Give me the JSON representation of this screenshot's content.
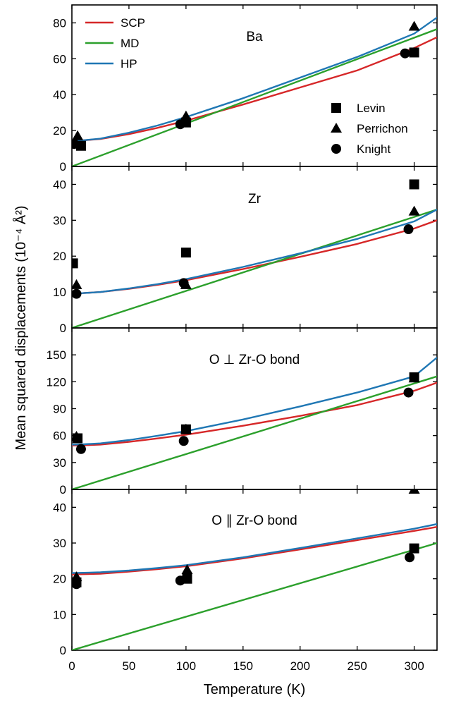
{
  "figure": {
    "ylabel": "Mean squared displacements (10⁻⁴ Å²)",
    "xlabel": "Temperature (K)",
    "xticks": [
      "0",
      "50",
      "100",
      "150",
      "200",
      "250",
      "300"
    ]
  },
  "colors": {
    "SCP": "#d62728",
    "MD": "#2ca02c",
    "HP": "#1f77b4",
    "exp": "#000000"
  },
  "legend_lines": [
    {
      "key": "SCP",
      "label": "SCP"
    },
    {
      "key": "MD",
      "label": "MD"
    },
    {
      "key": "HP",
      "label": "HP"
    }
  ],
  "legend_markers": [
    {
      "marker": "square",
      "label": "Levin"
    },
    {
      "marker": "triangle",
      "label": "Perrichon"
    },
    {
      "marker": "circle",
      "label": "Knight"
    }
  ],
  "chart_data": [
    {
      "type": "line",
      "title": "Ba",
      "xlabel": "Temperature (K)",
      "xlim": [
        0,
        320
      ],
      "ylim": [
        0,
        90
      ],
      "yticks": [
        0,
        20,
        40,
        60,
        80
      ],
      "series": [
        {
          "name": "SCP",
          "x": [
            0,
            10,
            25,
            50,
            75,
            100,
            150,
            200,
            250,
            300,
            320
          ],
          "y": [
            14.5,
            14.6,
            15.3,
            18.0,
            21.5,
            25.5,
            34.5,
            44.0,
            53.5,
            66.0,
            72.0
          ]
        },
        {
          "name": "MD",
          "x": [
            0,
            320
          ],
          "y": [
            0,
            76.5
          ]
        },
        {
          "name": "HP",
          "x": [
            0,
            10,
            25,
            50,
            75,
            100,
            150,
            200,
            250,
            300,
            320
          ],
          "y": [
            14.5,
            14.6,
            15.5,
            18.8,
            22.8,
            27.5,
            38.0,
            49.5,
            61.0,
            74.0,
            83.0
          ]
        }
      ],
      "experiments": [
        {
          "name": "Levin",
          "marker": "square",
          "points": [
            [
              8,
              11.5
            ],
            [
              100,
              24.5
            ],
            [
              300,
              63.5
            ]
          ]
        },
        {
          "name": "Perrichon",
          "marker": "triangle",
          "points": [
            [
              5,
              17
            ],
            [
              100,
              28
            ],
            [
              300,
              78
            ]
          ]
        },
        {
          "name": "Knight",
          "marker": "circle",
          "points": [
            [
              2,
              12.5
            ],
            [
              95,
              23.5
            ],
            [
              292,
              63
            ]
          ]
        }
      ]
    },
    {
      "type": "line",
      "title": "Zr",
      "xlabel": "Temperature (K)",
      "xlim": [
        0,
        320
      ],
      "ylim": [
        0,
        45
      ],
      "yticks": [
        0,
        10,
        20,
        30,
        40
      ],
      "series": [
        {
          "name": "SCP",
          "x": [
            0,
            10,
            25,
            50,
            75,
            100,
            150,
            200,
            250,
            300,
            320
          ],
          "y": [
            9.6,
            9.7,
            10.0,
            10.9,
            12.0,
            13.3,
            16.4,
            19.8,
            23.4,
            27.7,
            30.0
          ]
        },
        {
          "name": "MD",
          "x": [
            0,
            320
          ],
          "y": [
            0,
            33
          ]
        },
        {
          "name": "HP",
          "x": [
            0,
            10,
            25,
            50,
            75,
            100,
            150,
            200,
            250,
            300,
            320
          ],
          "y": [
            9.6,
            9.7,
            10.0,
            11.0,
            12.2,
            13.6,
            17.0,
            20.8,
            24.8,
            29.7,
            33.0
          ]
        }
      ],
      "experiments": [
        {
          "name": "Levin",
          "marker": "square",
          "points": [
            [
              1,
              18
            ],
            [
              100,
              21
            ],
            [
              300,
              40
            ]
          ]
        },
        {
          "name": "Perrichon",
          "marker": "triangle",
          "points": [
            [
              4,
              12
            ],
            [
              100,
              12
            ],
            [
              300,
              32.5
            ]
          ]
        },
        {
          "name": "Knight",
          "marker": "circle",
          "points": [
            [
              4,
              9.5
            ],
            [
              98,
              12.5
            ],
            [
              295,
              27.5
            ]
          ]
        }
      ]
    },
    {
      "type": "line",
      "title": "O ⊥ Zr-O bond",
      "xlabel": "Temperature (K)",
      "xlim": [
        0,
        320
      ],
      "ylim": [
        0,
        180
      ],
      "yticks": [
        0,
        30,
        60,
        90,
        120,
        150
      ],
      "series": [
        {
          "name": "SCP",
          "x": [
            0,
            10,
            25,
            50,
            75,
            100,
            150,
            200,
            250,
            300,
            320
          ],
          "y": [
            49.0,
            49.2,
            50.0,
            53.0,
            56.8,
            61.0,
            71.0,
            82.0,
            94.0,
            110.0,
            119.0
          ]
        },
        {
          "name": "MD",
          "x": [
            0,
            320
          ],
          "y": [
            0,
            126
          ]
        },
        {
          "name": "HP",
          "x": [
            0,
            10,
            25,
            50,
            75,
            100,
            150,
            200,
            250,
            300,
            320
          ],
          "y": [
            50.0,
            50.3,
            51.3,
            55.0,
            59.8,
            65.0,
            78.0,
            92.5,
            108.0,
            126.0,
            147.0
          ]
        }
      ],
      "experiments": [
        {
          "name": "Levin",
          "marker": "square",
          "points": [
            [
              5,
              57
            ],
            [
              100,
              67
            ],
            [
              300,
              125
            ]
          ]
        },
        {
          "name": "Perrichon",
          "marker": "triangle",
          "points": [
            [
              4,
              59
            ],
            [
              100,
              67
            ],
            [
              300,
              124
            ]
          ]
        },
        {
          "name": "Knight",
          "marker": "circle",
          "points": [
            [
              8,
              45
            ],
            [
              98,
              54
            ],
            [
              295,
              108
            ]
          ]
        }
      ]
    },
    {
      "type": "line",
      "title": "O ∥ Zr-O bond",
      "xlabel": "Temperature (K)",
      "xlim": [
        0,
        320
      ],
      "ylim": [
        0,
        45
      ],
      "yticks": [
        0,
        10,
        20,
        30,
        40
      ],
      "series": [
        {
          "name": "SCP",
          "x": [
            0,
            25,
            50,
            75,
            100,
            150,
            200,
            250,
            300,
            320
          ],
          "y": [
            21.2,
            21.4,
            22.0,
            22.7,
            23.5,
            25.7,
            28.2,
            30.8,
            33.4,
            34.5
          ]
        },
        {
          "name": "MD",
          "x": [
            0,
            320
          ],
          "y": [
            0,
            30
          ]
        },
        {
          "name": "HP",
          "x": [
            0,
            25,
            50,
            75,
            100,
            150,
            200,
            250,
            300,
            320
          ],
          "y": [
            21.6,
            21.8,
            22.3,
            23.0,
            23.8,
            26.0,
            28.6,
            31.3,
            34.0,
            35.3
          ]
        }
      ],
      "experiments": [
        {
          "name": "Levin",
          "marker": "square",
          "points": [
            [
              4,
              19
            ],
            [
              101,
              20
            ],
            [
              300,
              28.5
            ]
          ]
        },
        {
          "name": "Perrichon",
          "marker": "triangle",
          "points": [
            [
              4,
              20.5
            ],
            [
              101,
              22.5
            ],
            [
              300,
              45
            ]
          ]
        },
        {
          "name": "Knight",
          "marker": "circle",
          "points": [
            [
              4,
              18.5
            ],
            [
              95,
              19.5
            ],
            [
              296,
              26
            ]
          ]
        }
      ]
    }
  ]
}
